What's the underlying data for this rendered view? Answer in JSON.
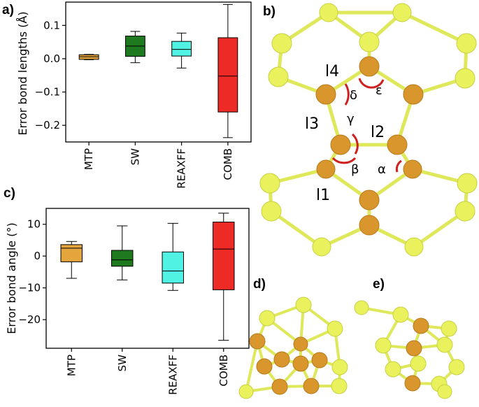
{
  "figure": {
    "labels": {
      "a": "a)",
      "b": "b)",
      "c": "c)",
      "d": "d)",
      "e": "e)"
    },
    "molecule": {
      "bond_labels": [
        "l1",
        "l2",
        "l3",
        "l4"
      ],
      "angle_labels": [
        "α",
        "β",
        "γ",
        "δ",
        "ε"
      ]
    },
    "colors": {
      "atom_yellow": "#e9f25c",
      "atom_orange": "#d9962c",
      "bond_yellow": "#dfe85a",
      "angle_arc": "#d01f1f"
    }
  },
  "chart_data": [
    {
      "type": "box",
      "panel": "a)",
      "ylabel": "Error bond lengths (Å)",
      "categories": [
        "MTP",
        "SW",
        "REAXFF",
        "COMB"
      ],
      "colors": [
        "#e4a53c",
        "#1f7a1f",
        "#4ff2e3",
        "#ee2a26"
      ],
      "ylim": [
        -0.25,
        0.17
      ],
      "yticks": [
        -0.2,
        -0.1,
        0.0,
        0.1
      ],
      "ytick_labels": [
        "−0.2",
        "−0.1",
        "0.0",
        "0.1"
      ],
      "boxes": [
        {
          "min": -0.003,
          "q1": -0.002,
          "median": 0.006,
          "q3": 0.012,
          "max": 0.013
        },
        {
          "min": -0.012,
          "q1": 0.007,
          "median": 0.038,
          "q3": 0.068,
          "max": 0.082
        },
        {
          "min": -0.028,
          "q1": 0.008,
          "median": 0.028,
          "q3": 0.052,
          "max": 0.077
        },
        {
          "min": -0.237,
          "q1": -0.16,
          "median": -0.052,
          "q3": 0.063,
          "max": 0.163
        }
      ]
    },
    {
      "type": "box",
      "panel": "c)",
      "ylabel": "Error bond angle (°)",
      "categories": [
        "MTP",
        "SW",
        "REAXFF",
        "COMB"
      ],
      "colors": [
        "#e4a53c",
        "#1f7a1f",
        "#4ff2e3",
        "#ee2a26"
      ],
      "ylim": [
        -29,
        15
      ],
      "yticks": [
        -20,
        -10,
        0,
        10
      ],
      "ytick_labels": [
        "−20",
        "−10",
        "0",
        "10"
      ],
      "boxes": [
        {
          "min": -7.0,
          "q1": -1.8,
          "median": 2.5,
          "q3": 3.6,
          "max": 4.6
        },
        {
          "min": -7.5,
          "q1": -3.2,
          "median": -1.2,
          "q3": 1.8,
          "max": 9.5
        },
        {
          "min": -10.8,
          "q1": -8.5,
          "median": -4.7,
          "q3": 1.3,
          "max": 10.3
        },
        {
          "min": -26.5,
          "q1": -10.6,
          "median": 2.2,
          "q3": 10.7,
          "max": 13.5
        }
      ]
    }
  ]
}
